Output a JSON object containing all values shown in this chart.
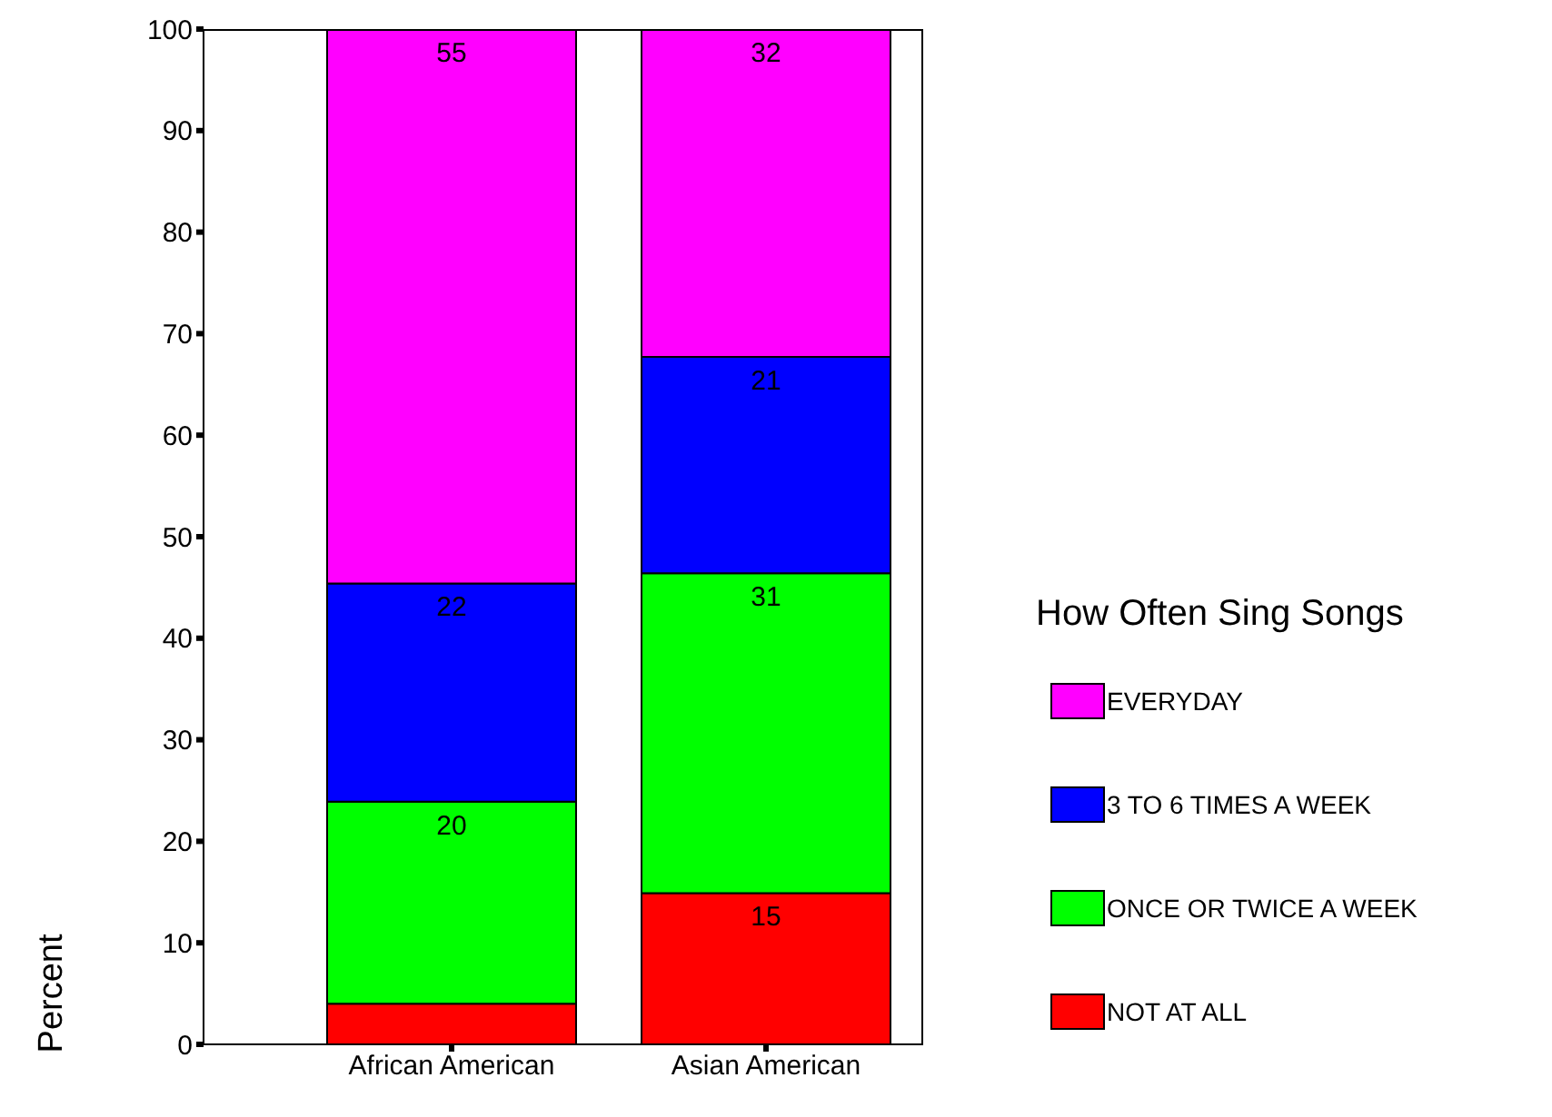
{
  "chart_data": {
    "type": "bar",
    "stacked": true,
    "categories": [
      "African American",
      "Asian American"
    ],
    "ylabel": "Percent",
    "legend_title": "How Often Sing Songs",
    "legend": "right",
    "ylim": [
      0,
      100
    ],
    "yticks": [
      0,
      10,
      20,
      30,
      40,
      50,
      60,
      70,
      80,
      90,
      100
    ],
    "series": [
      {
        "name": "NOT AT ALL",
        "color": "#ff0000",
        "values": [
          4.0,
          14.9
        ],
        "value_labels": [
          null,
          "15"
        ]
      },
      {
        "name": "ONCE OR TWICE A WEEK",
        "color": "#00ff00",
        "values": [
          19.9,
          31.5
        ],
        "value_labels": [
          "20",
          "31"
        ]
      },
      {
        "name": "3 TO 6 TIMES A WEEK",
        "color": "#0000ff",
        "values": [
          21.5,
          21.3
        ],
        "value_labels": [
          "22",
          "21"
        ]
      },
      {
        "name": "EVERYDAY",
        "color": "#ff00ff",
        "values": [
          54.6,
          32.3
        ],
        "value_labels": [
          "55",
          "32"
        ]
      }
    ]
  }
}
